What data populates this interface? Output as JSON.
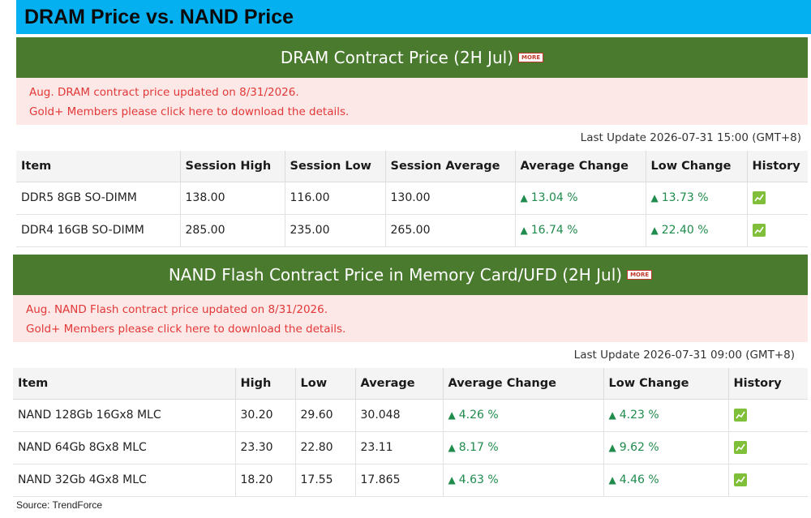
{
  "page_title": "DRAM Price vs. NAND Price",
  "dram": {
    "header": "DRAM Contract Price (2H Jul)",
    "more_label": "MORE",
    "notice_line1": "Aug. DRAM contract price updated on 8/31/2026.",
    "notice_line2": "Gold+ Members please click here to download the details.",
    "last_update": "Last Update 2026-07-31 15:00 (GMT+8)",
    "columns": [
      "Item",
      "Session High",
      "Session Low",
      "Session Average",
      "Average Change",
      "Low Change",
      "History"
    ],
    "rows": [
      {
        "item": "DDR5 8GB SO-DIMM",
        "high": "138.00",
        "low": "116.00",
        "avg": "130.00",
        "avg_change": "13.04 %",
        "low_change": "13.73 %",
        "history_icon": "chart-icon"
      },
      {
        "item": "DDR4 16GB SO-DIMM",
        "high": "285.00",
        "low": "235.00",
        "avg": "265.00",
        "avg_change": "16.74 %",
        "low_change": "22.40 %",
        "history_icon": "chart-icon"
      }
    ]
  },
  "nand": {
    "header": "NAND Flash Contract Price in Memory Card/UFD (2H Jul)",
    "more_label": "MORE",
    "notice_line1": "Aug. NAND Flash contract price updated on 8/31/2026.",
    "notice_line2": "Gold+ Members please click here to download the details.",
    "last_update": "Last Update 2026-07-31 09:00 (GMT+8)",
    "columns": [
      "Item",
      "High",
      "Low",
      "Average",
      "Average Change",
      "Low Change",
      "History"
    ],
    "rows": [
      {
        "item": "NAND 128Gb 16Gx8 MLC",
        "high": "30.20",
        "low": "29.60",
        "avg": "30.048",
        "avg_change": "4.26 %",
        "low_change": "4.23 %",
        "history_icon": "chart-icon"
      },
      {
        "item": "NAND 64Gb 8Gx8 MLC",
        "high": "23.30",
        "low": "22.80",
        "avg": "23.11",
        "avg_change": "8.17 %",
        "low_change": "9.62 %",
        "history_icon": "chart-icon"
      },
      {
        "item": "NAND 32Gb 4Gx8 MLC",
        "high": "18.20",
        "low": "17.55",
        "avg": "17.865",
        "avg_change": "4.63 %",
        "low_change": "4.46 %",
        "history_icon": "chart-icon"
      }
    ]
  },
  "source": "Source: TrendForce",
  "colors": {
    "title_bar": "#05b0f0",
    "header_green": "#4a7a2e",
    "notice_bg": "#fde8e8",
    "notice_text": "#e23838",
    "up_green": "#1f8b4c"
  }
}
